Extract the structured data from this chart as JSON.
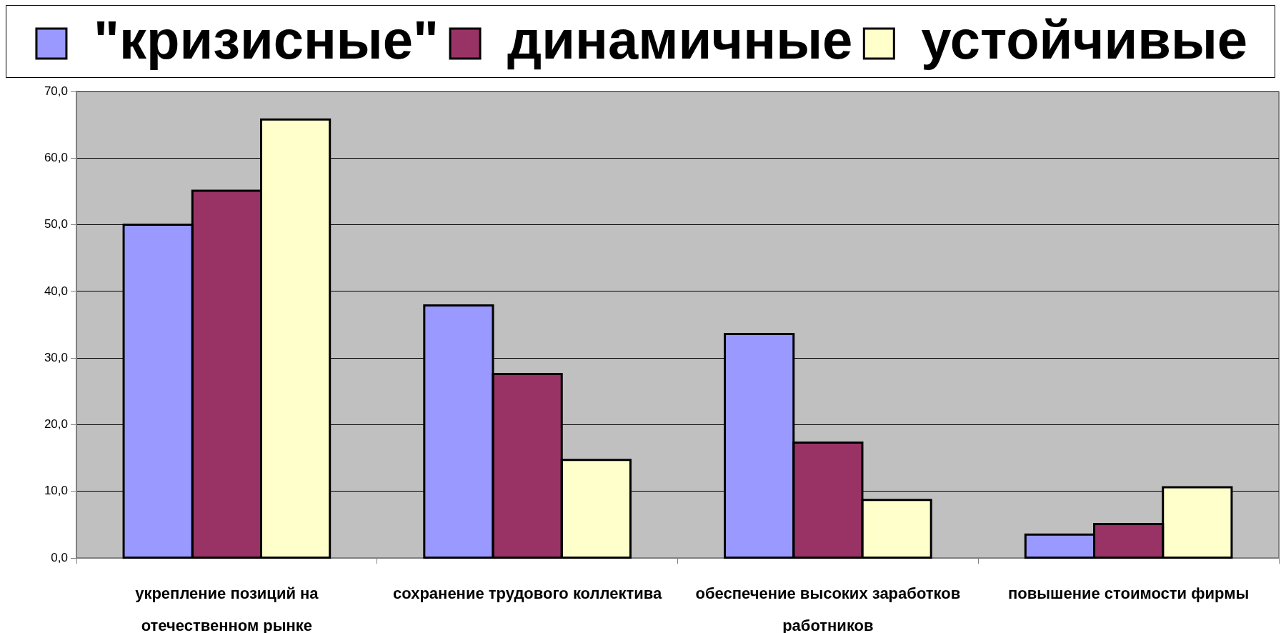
{
  "chart_data": {
    "type": "bar",
    "categories": [
      "укрепление позиций на отечественном рынке",
      "сохранение трудового коллектива",
      "обеспечение высоких заработков работников",
      "повышение стоимости фирмы"
    ],
    "series": [
      {
        "name": "\"кризисные\"",
        "color": "#9999ff",
        "values": [
          50.0,
          37.9,
          33.6,
          3.5
        ]
      },
      {
        "name": "динамичные",
        "color": "#993366",
        "values": [
          55.1,
          27.6,
          17.3,
          5.1
        ]
      },
      {
        "name": "устойчивые",
        "color": "#ffffcc",
        "values": [
          65.8,
          14.7,
          8.7,
          10.6
        ]
      }
    ],
    "ylim": [
      0,
      70
    ],
    "yticks": [
      {
        "value": 0,
        "label": "0,0"
      },
      {
        "value": 10,
        "label": "10,0"
      },
      {
        "value": 20,
        "label": "20,0"
      },
      {
        "value": 30,
        "label": "30,0"
      },
      {
        "value": 40,
        "label": "40,0"
      },
      {
        "value": 50,
        "label": "50,0"
      },
      {
        "value": 60,
        "label": "60,0"
      },
      {
        "value": 70,
        "label": "70,0"
      }
    ],
    "grid": "y",
    "legend": "top"
  }
}
